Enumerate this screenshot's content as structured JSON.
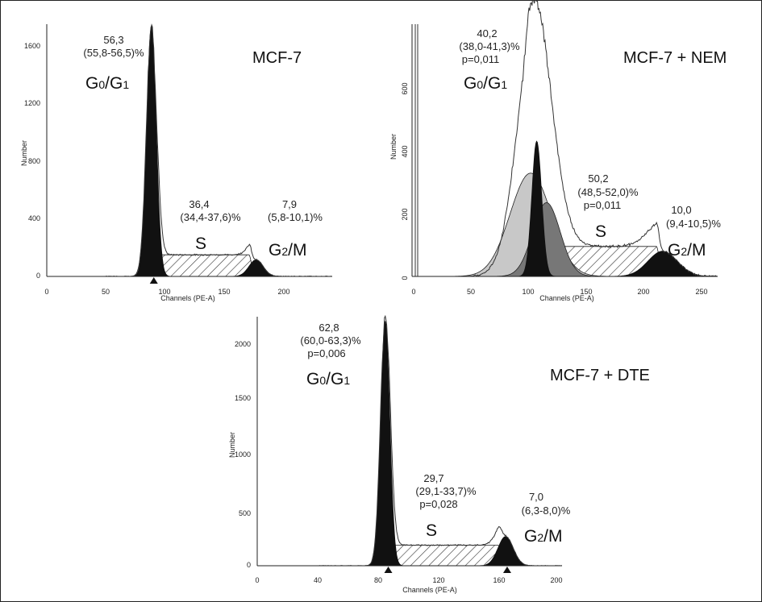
{
  "chart_data": [
    {
      "type": "area",
      "title": "MCF-7",
      "xlabel": "Channels (PE-A)",
      "ylabel": "Number",
      "xlim": [
        0,
        240
      ],
      "ylim": [
        0,
        1750
      ],
      "x_ticks": [
        "0",
        "50",
        "100",
        "150",
        "200"
      ],
      "y_ticks": [
        "0",
        "400",
        "800",
        "1200",
        "1600"
      ],
      "peak_markers": [
        90
      ],
      "components": [
        {
          "name": "G0/G1",
          "center": 88,
          "sd": 4,
          "height": 1740
        },
        {
          "name": "S",
          "from": 95,
          "to": 170,
          "level": 150
        },
        {
          "name": "G2/M",
          "center": 176,
          "sd": 6,
          "height": 115
        }
      ],
      "annotations": [
        {
          "phase": "G0/G1",
          "lines": [
            "56,3",
            "(55,8-56,5)%"
          ]
        },
        {
          "phase": "S",
          "lines": [
            "36,4",
            "(34,4-37,6)%"
          ]
        },
        {
          "phase": "G2/M",
          "lines": [
            "7,9",
            "(5,8-10,1)%"
          ]
        }
      ]
    },
    {
      "type": "area",
      "title": "MCF-7 + NEM",
      "xlabel": "Channels (PE-A)",
      "ylabel": "Number",
      "xlim": [
        0,
        250
      ],
      "ylim": [
        0,
        800
      ],
      "x_ticks": [
        "0",
        "50",
        "100",
        "150",
        "200",
        "250"
      ],
      "y_ticks": [
        "0",
        "200",
        "400",
        "600"
      ],
      "peak_markers": [],
      "components": [
        {
          "name": "G0/G1",
          "center": 100,
          "sd": 14,
          "height": 780
        },
        {
          "name": "S",
          "from": 95,
          "to": 200,
          "level": 95
        },
        {
          "name": "G2/M",
          "center": 205,
          "sd": 12,
          "height": 80
        }
      ],
      "annotations": [
        {
          "phase": "G0/G1",
          "lines": [
            "40,2",
            "(38,0-41,3)%",
            "p=0,011"
          ]
        },
        {
          "phase": "S",
          "lines": [
            "50,2",
            "(48,5-52,0)%",
            "p=0,011"
          ]
        },
        {
          "phase": "G2/M",
          "lines": [
            "10,0",
            "(9,4-10,5)%"
          ]
        }
      ]
    },
    {
      "type": "area",
      "title": "MCF-7 + DTE",
      "xlabel": "Channels (PE-A)",
      "ylabel": "Number",
      "xlim": [
        0,
        200
      ],
      "ylim": [
        0,
        2300
      ],
      "x_ticks": [
        "0",
        "40",
        "80",
        "120",
        "160",
        "200"
      ],
      "y_ticks": [
        "0",
        "500",
        "1000",
        "1500",
        "2000"
      ],
      "peak_markers": [
        86,
        164
      ],
      "components": [
        {
          "name": "G0/G1",
          "center": 84,
          "sd": 3,
          "height": 2260
        },
        {
          "name": "S",
          "from": 88,
          "to": 158,
          "level": 190
        },
        {
          "name": "G2/M",
          "center": 163,
          "sd": 5,
          "height": 270
        }
      ],
      "annotations": [
        {
          "phase": "G0/G1",
          "lines": [
            "62,8",
            "(60,0-63,3)%",
            "p=0,006"
          ]
        },
        {
          "phase": "S",
          "lines": [
            "29,7",
            "(29,1-33,7)%",
            "p=0,028"
          ]
        },
        {
          "phase": "G2/M",
          "lines": [
            "7,0",
            "(6,3-8,0)%"
          ]
        }
      ]
    }
  ],
  "phase_labels": {
    "g0g1": "G0/G1",
    "s": "S",
    "g2m": "G2/M"
  }
}
